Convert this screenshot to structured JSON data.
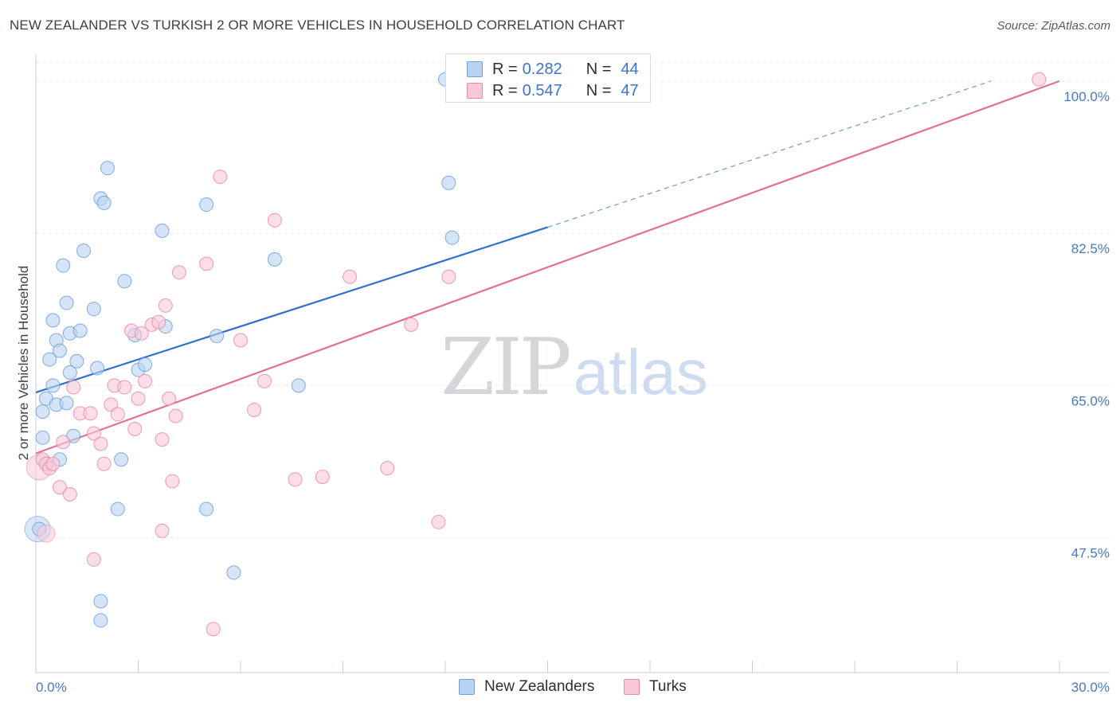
{
  "title": "NEW ZEALANDER VS TURKISH 2 OR MORE VEHICLES IN HOUSEHOLD CORRELATION CHART",
  "source": "Source: ZipAtlas.com",
  "watermark": {
    "zip": "ZIP",
    "atlas": "atlas"
  },
  "legend": {
    "rows": [
      {
        "r_label": "R =",
        "r_value": "0.282",
        "n_label": "N =",
        "n_value": "44",
        "color": "#b9d3f2",
        "border": "#6f9fdc"
      },
      {
        "r_label": "R =",
        "r_value": "0.547",
        "n_label": "N =",
        "n_value": "47",
        "color": "#f9c8d8",
        "border": "#e98aaa"
      }
    ]
  },
  "bottom_legend": [
    {
      "label": "New Zealanders",
      "color": "#b9d3f2",
      "border": "#6f9fdc"
    },
    {
      "label": "Turks",
      "color": "#f9c8d8",
      "border": "#e98aaa"
    }
  ],
  "chart_data": {
    "type": "scatter",
    "title": "NEW ZEALANDER VS TURKISH 2 OR MORE VEHICLES IN HOUSEHOLD CORRELATION CHART",
    "xlabel": "",
    "ylabel": "2 or more Vehicles in Household",
    "xlim": [
      0,
      30
    ],
    "ylim": [
      32,
      102
    ],
    "x_tick_labels": [
      "0.0%",
      "30.0%"
    ],
    "y_ticks": [
      47.5,
      65.0,
      82.5,
      100.0
    ],
    "y_tick_labels": [
      "47.5%",
      "65.0%",
      "82.5%",
      "100.0%"
    ],
    "grid": true,
    "series": [
      {
        "name": "New Zealanders",
        "color": "#6f9fdc",
        "fill": "#b9d3f2",
        "trend": {
          "x": [
            0.0,
            15.0
          ],
          "y": [
            64.2,
            83.2
          ],
          "dash_to": [
            28.0,
            100.0
          ],
          "color": "#2f6fcd"
        },
        "points": [
          [
            0.1,
            48.5
          ],
          [
            0.2,
            62.0
          ],
          [
            0.2,
            59.0
          ],
          [
            0.3,
            63.5
          ],
          [
            0.4,
            68.0
          ],
          [
            0.5,
            65.0
          ],
          [
            0.5,
            72.5
          ],
          [
            0.6,
            62.8
          ],
          [
            0.6,
            70.2
          ],
          [
            0.7,
            56.5
          ],
          [
            0.7,
            69.0
          ],
          [
            0.8,
            78.8
          ],
          [
            0.9,
            74.5
          ],
          [
            0.9,
            63.0
          ],
          [
            1.0,
            71.0
          ],
          [
            1.0,
            66.5
          ],
          [
            1.1,
            59.2
          ],
          [
            1.2,
            67.8
          ],
          [
            1.3,
            71.3
          ],
          [
            1.4,
            80.5
          ],
          [
            1.7,
            73.8
          ],
          [
            1.8,
            67.0
          ],
          [
            1.9,
            38.0
          ],
          [
            1.9,
            40.2
          ],
          [
            1.9,
            86.5
          ],
          [
            2.0,
            86.0
          ],
          [
            2.1,
            90.0
          ],
          [
            2.4,
            50.8
          ],
          [
            2.5,
            56.5
          ],
          [
            2.6,
            77.0
          ],
          [
            2.9,
            70.8
          ],
          [
            3.0,
            66.8
          ],
          [
            3.2,
            67.4
          ],
          [
            3.7,
            82.8
          ],
          [
            3.8,
            71.8
          ],
          [
            5.0,
            85.8
          ],
          [
            5.0,
            50.8
          ],
          [
            5.3,
            70.7
          ],
          [
            5.8,
            43.5
          ],
          [
            7.0,
            79.5
          ],
          [
            7.7,
            65.0
          ],
          [
            12.0,
            100.2
          ],
          [
            12.1,
            88.3
          ],
          [
            12.2,
            82.0
          ]
        ],
        "large_point": [
          0.05,
          48.5
        ]
      },
      {
        "name": "Turks",
        "color": "#e98aaa",
        "fill": "#f9c8d8",
        "trend": {
          "x": [
            0.0,
            30.0
          ],
          "y": [
            57.2,
            100.0
          ],
          "color": "#e0709a"
        },
        "points": [
          [
            0.2,
            56.5
          ],
          [
            0.3,
            56.0
          ],
          [
            0.4,
            55.5
          ],
          [
            0.5,
            56.0
          ],
          [
            0.7,
            53.3
          ],
          [
            0.8,
            58.5
          ],
          [
            1.0,
            52.5
          ],
          [
            1.1,
            64.8
          ],
          [
            1.3,
            61.8
          ],
          [
            1.6,
            61.8
          ],
          [
            1.7,
            59.5
          ],
          [
            1.9,
            58.3
          ],
          [
            2.0,
            56.0
          ],
          [
            2.2,
            62.8
          ],
          [
            2.3,
            65.0
          ],
          [
            2.4,
            61.7
          ],
          [
            2.6,
            64.8
          ],
          [
            2.8,
            71.3
          ],
          [
            2.9,
            60.0
          ],
          [
            3.0,
            63.5
          ],
          [
            3.1,
            71.0
          ],
          [
            3.2,
            65.5
          ],
          [
            3.4,
            72.0
          ],
          [
            3.6,
            72.3
          ],
          [
            3.7,
            58.8
          ],
          [
            3.8,
            74.2
          ],
          [
            3.9,
            63.5
          ],
          [
            4.0,
            54.0
          ],
          [
            4.1,
            61.5
          ],
          [
            4.2,
            78.0
          ],
          [
            5.0,
            79.0
          ],
          [
            5.2,
            37.0
          ],
          [
            5.4,
            89.0
          ],
          [
            6.0,
            70.2
          ],
          [
            6.4,
            62.2
          ],
          [
            6.7,
            65.5
          ],
          [
            7.0,
            84.0
          ],
          [
            7.6,
            54.2
          ],
          [
            8.4,
            54.5
          ],
          [
            9.2,
            77.5
          ],
          [
            10.3,
            55.5
          ],
          [
            11.0,
            72.0
          ],
          [
            11.8,
            49.3
          ],
          [
            12.1,
            77.5
          ],
          [
            1.7,
            45.0
          ],
          [
            3.7,
            48.3
          ],
          [
            29.4,
            100.2
          ]
        ],
        "large_point": [
          0.1,
          55.6
        ],
        "large_point2": [
          0.3,
          48.0
        ]
      }
    ]
  }
}
